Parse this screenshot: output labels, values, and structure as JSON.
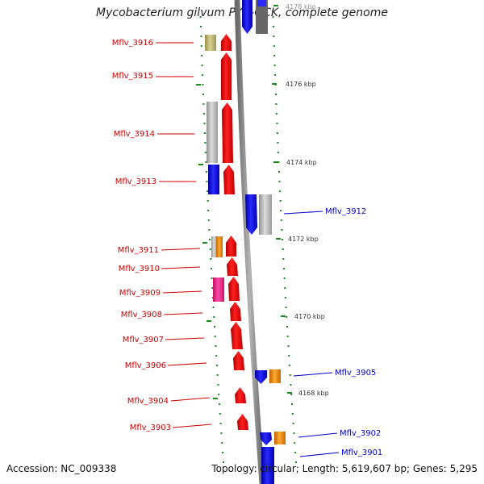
{
  "title": "Mycobacterium gilvum PYR-GCK, complete genome",
  "footer": {
    "accession": "Accession: NC_009338",
    "summary": "Topology: circular; Length: 5,619,607 bp; Genes: 5,295"
  },
  "kbp_labels": [
    "4178 kbp",
    "4176 kbp",
    "4174 kbp",
    "4172 kbp",
    "4170 kbp",
    "4168 kbp"
  ],
  "left_genes": [
    "Mflv_3916",
    "Mflv_3915",
    "Mflv_3914",
    "Mflv_3913",
    "Mflv_3911",
    "Mflv_3910",
    "Mflv_3909",
    "Mflv_3908",
    "Mflv_3907",
    "Mflv_3906",
    "Mflv_3904",
    "Mflv_3903"
  ],
  "right_genes": [
    "Mflv_3912",
    "Mflv_3905",
    "Mflv_3902",
    "Mflv_3901"
  ],
  "colors": {
    "left_label": "#cc0000",
    "right_label": "#0000cc",
    "red": "#ff0000",
    "blue": "#0000ff",
    "grey": "#c0c0c0",
    "olive": "#c8c080",
    "orange": "#ff9900",
    "magenta": "#ff3399",
    "tick": "#1a8a1a",
    "axis": "#909090"
  }
}
